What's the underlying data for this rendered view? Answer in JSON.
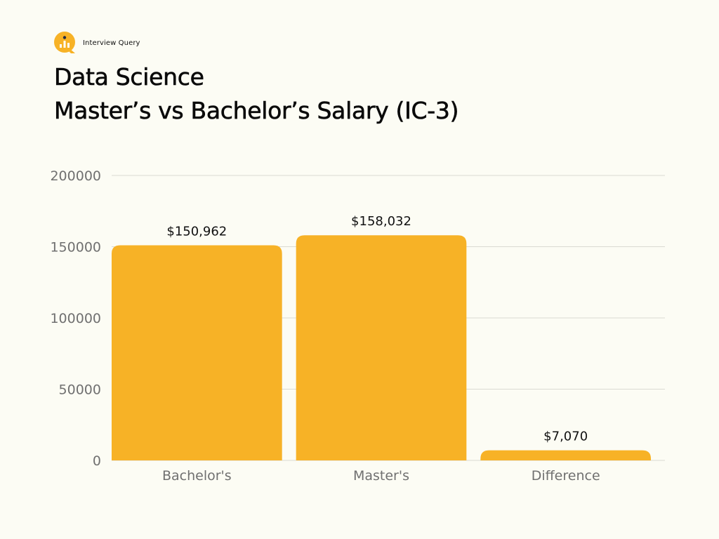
{
  "brand": {
    "name": "Interview Query",
    "icon": "magnifier-bar-chart-icon"
  },
  "title": {
    "line1": "Data Science",
    "line2": "Master’s vs Bachelor’s Salary (IC-3)"
  },
  "colors": {
    "bar": "#f7b226",
    "grid": "#dadad2",
    "axis_text": "#707070",
    "background": "#fcfcf4"
  },
  "chart_data": {
    "type": "bar",
    "categories": [
      "Bachelor's",
      "Master's",
      "Difference"
    ],
    "values": [
      150962,
      158032,
      7070
    ],
    "value_labels": [
      "$150,962",
      "$158,032",
      "$7,070"
    ],
    "ylim": [
      0,
      200000
    ],
    "yticks": [
      "0",
      "50000",
      "100000",
      "150000",
      "200000"
    ],
    "ytick_values": [
      0,
      50000,
      100000,
      150000,
      200000
    ],
    "grid": true,
    "legend": "none",
    "title": "Data Science Master’s vs Bachelor’s Salary (IC-3)",
    "xlabel": "",
    "ylabel": ""
  }
}
